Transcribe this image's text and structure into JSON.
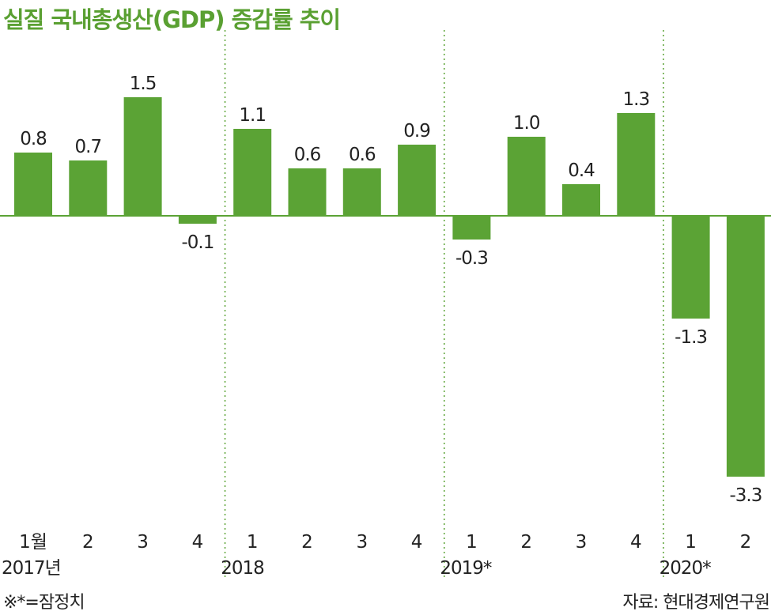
{
  "title": "실질 국내총생산(GDP) 증감률 추이",
  "note": "※*=잠정치",
  "source": "자료: 현대경제연구원",
  "colors": {
    "bar": "#5ba335",
    "title": "#5aa032",
    "axis": "#5ba335",
    "text": "#222222"
  },
  "chart_data": {
    "type": "bar",
    "title": "실질 국내총생산(GDP) 증감률 추이",
    "ylim": [
      -3.3,
      1.5
    ],
    "grid": false,
    "categories": [
      "1월",
      "2",
      "3",
      "4",
      "1",
      "2",
      "3",
      "4",
      "1",
      "2",
      "3",
      "4",
      "1",
      "2"
    ],
    "year_groups": [
      {
        "label": "2017년",
        "count": 4
      },
      {
        "label": "2018",
        "count": 4
      },
      {
        "label": "2019*",
        "count": 4
      },
      {
        "label": "2020*",
        "count": 2
      }
    ],
    "values": [
      0.8,
      0.7,
      1.5,
      -0.1,
      1.1,
      0.6,
      0.6,
      0.9,
      -0.3,
      1.0,
      0.4,
      1.3,
      -1.3,
      -3.3
    ],
    "value_labels": [
      "0.8",
      "0.7",
      "1.5",
      "-0.1",
      "1.1",
      "0.6",
      "0.6",
      "0.9",
      "-0.3",
      "1.0",
      "0.4",
      "1.3",
      "-1.3",
      "-3.3"
    ]
  }
}
